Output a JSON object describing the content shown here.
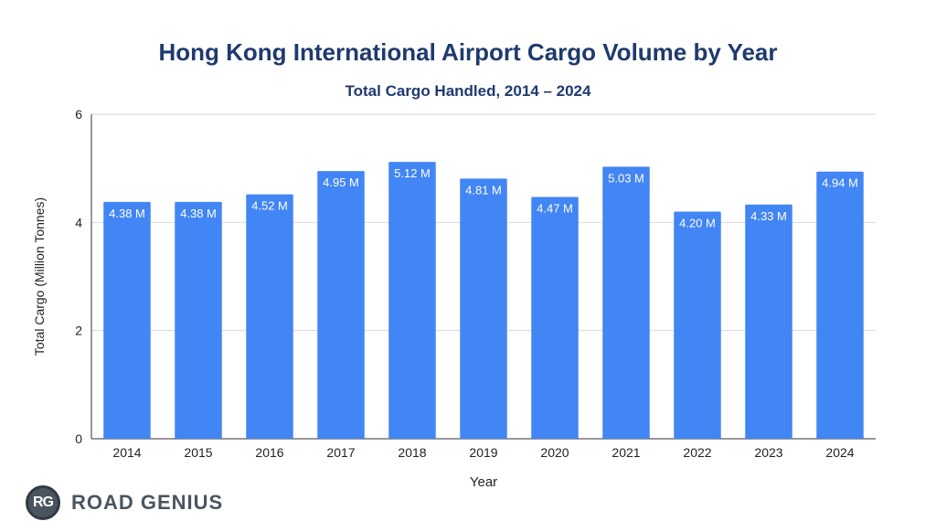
{
  "title": "Hong Kong International Airport Cargo Volume by Year",
  "subtitle": "Total Cargo Handled, 2014 – 2024",
  "logo": {
    "badge": "RG",
    "text": "ROAD GENIUS"
  },
  "colors": {
    "bar": "#4285f4",
    "title": "#1f3a6e",
    "grid": "#d9d9d9",
    "axis": "#333333"
  },
  "chart_data": {
    "type": "bar",
    "categories": [
      "2014",
      "2015",
      "2016",
      "2017",
      "2018",
      "2019",
      "2020",
      "2021",
      "2022",
      "2023",
      "2024"
    ],
    "values": [
      4.38,
      4.38,
      4.52,
      4.95,
      5.12,
      4.81,
      4.47,
      5.03,
      4.2,
      4.33,
      4.94
    ],
    "data_labels": [
      "4.38 M",
      "4.38 M",
      "4.52 M",
      "4.95 M",
      "5.12 M",
      "4.81 M",
      "4.47 M",
      "5.03 M",
      "4.20 M",
      "4.33 M",
      "4.94 M"
    ],
    "xlabel": "Year",
    "ylabel": "Total Cargo (Million Tonnes)",
    "ylim": [
      0,
      6
    ],
    "yticks": [
      0,
      2,
      4,
      6
    ],
    "grid": true
  }
}
